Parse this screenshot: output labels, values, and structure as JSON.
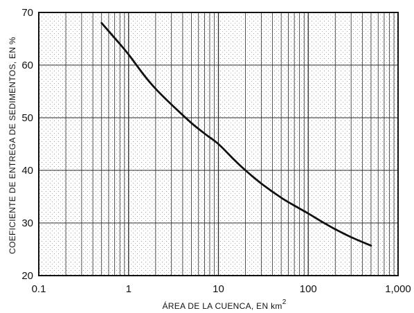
{
  "chart_data": {
    "type": "line",
    "title": "",
    "xlabel": "ÁREA DE LA CUENCA, EN km",
    "xlabel_superscript": "2",
    "ylabel": "COEFICIENTE DE ENTREGA DE SEDIMENTOS, EN %",
    "x_scale": "log",
    "xlim": [
      0.1,
      1000
    ],
    "ylim": [
      20,
      70
    ],
    "grid": true,
    "legend": "none",
    "x_ticks": [
      0.1,
      1,
      10,
      100,
      1000
    ],
    "x_tick_labels": [
      "0.1",
      "1",
      "10",
      "100",
      "1,000"
    ],
    "y_ticks": [
      20,
      30,
      40,
      50,
      60,
      70
    ],
    "y_tick_labels": [
      "20",
      "30",
      "40",
      "50",
      "60",
      "70"
    ],
    "series": [
      {
        "x": [
          0.5,
          0.8,
          1,
          1.5,
          2,
          3,
          5,
          7,
          10,
          15,
          20,
          30,
          50,
          70,
          100,
          150,
          200,
          300,
          500
        ],
        "y": [
          68,
          64,
          62,
          58,
          55.5,
          52.5,
          49,
          47,
          45,
          42,
          40,
          37.5,
          34.8,
          33.3,
          31.8,
          30,
          28.8,
          27.3,
          25.7
        ]
      }
    ],
    "colors": {
      "line": "#111111",
      "grid": "#2a2a2a",
      "background": "#ffffff"
    }
  }
}
